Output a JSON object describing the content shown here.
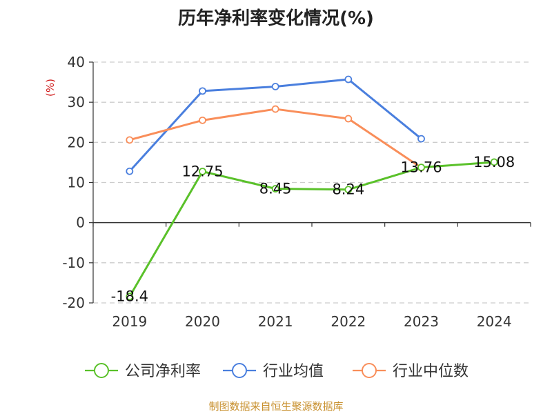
{
  "chart_data": {
    "type": "line",
    "title": "历年净利率变化情况(%)",
    "ylabel": "(%)",
    "categories": [
      "2019",
      "2020",
      "2021",
      "2022",
      "2023",
      "2024"
    ],
    "ylim": [
      -20,
      40
    ],
    "yticks": [
      "40",
      "30",
      "20",
      "10",
      "0",
      "-10",
      "-20"
    ],
    "yticks_values": [
      40,
      30,
      20,
      10,
      0,
      -10,
      -20
    ],
    "grid": true,
    "legend_position": "bottom",
    "series": [
      {
        "name": "公司净利率",
        "color": "#5ac12a",
        "values": [
          -18.4,
          12.75,
          8.45,
          8.24,
          13.76,
          15.08
        ],
        "labels": [
          "-18.4",
          "12.75",
          "8.45",
          "8.24",
          "13.76",
          "15.08"
        ]
      },
      {
        "name": "行业均值",
        "color": "#4a7fde",
        "values": [
          12.8,
          32.8,
          33.9,
          35.7,
          20.9,
          null
        ]
      },
      {
        "name": "行业中位数",
        "color": "#f98e5a",
        "values": [
          20.6,
          25.5,
          28.3,
          25.9,
          13.7,
          null
        ]
      }
    ]
  },
  "source": "制图数据来自恒生聚源数据库",
  "colors": {
    "ylabel": "#d01a1a",
    "grid": "#cccccc",
    "axis": "#333333"
  }
}
